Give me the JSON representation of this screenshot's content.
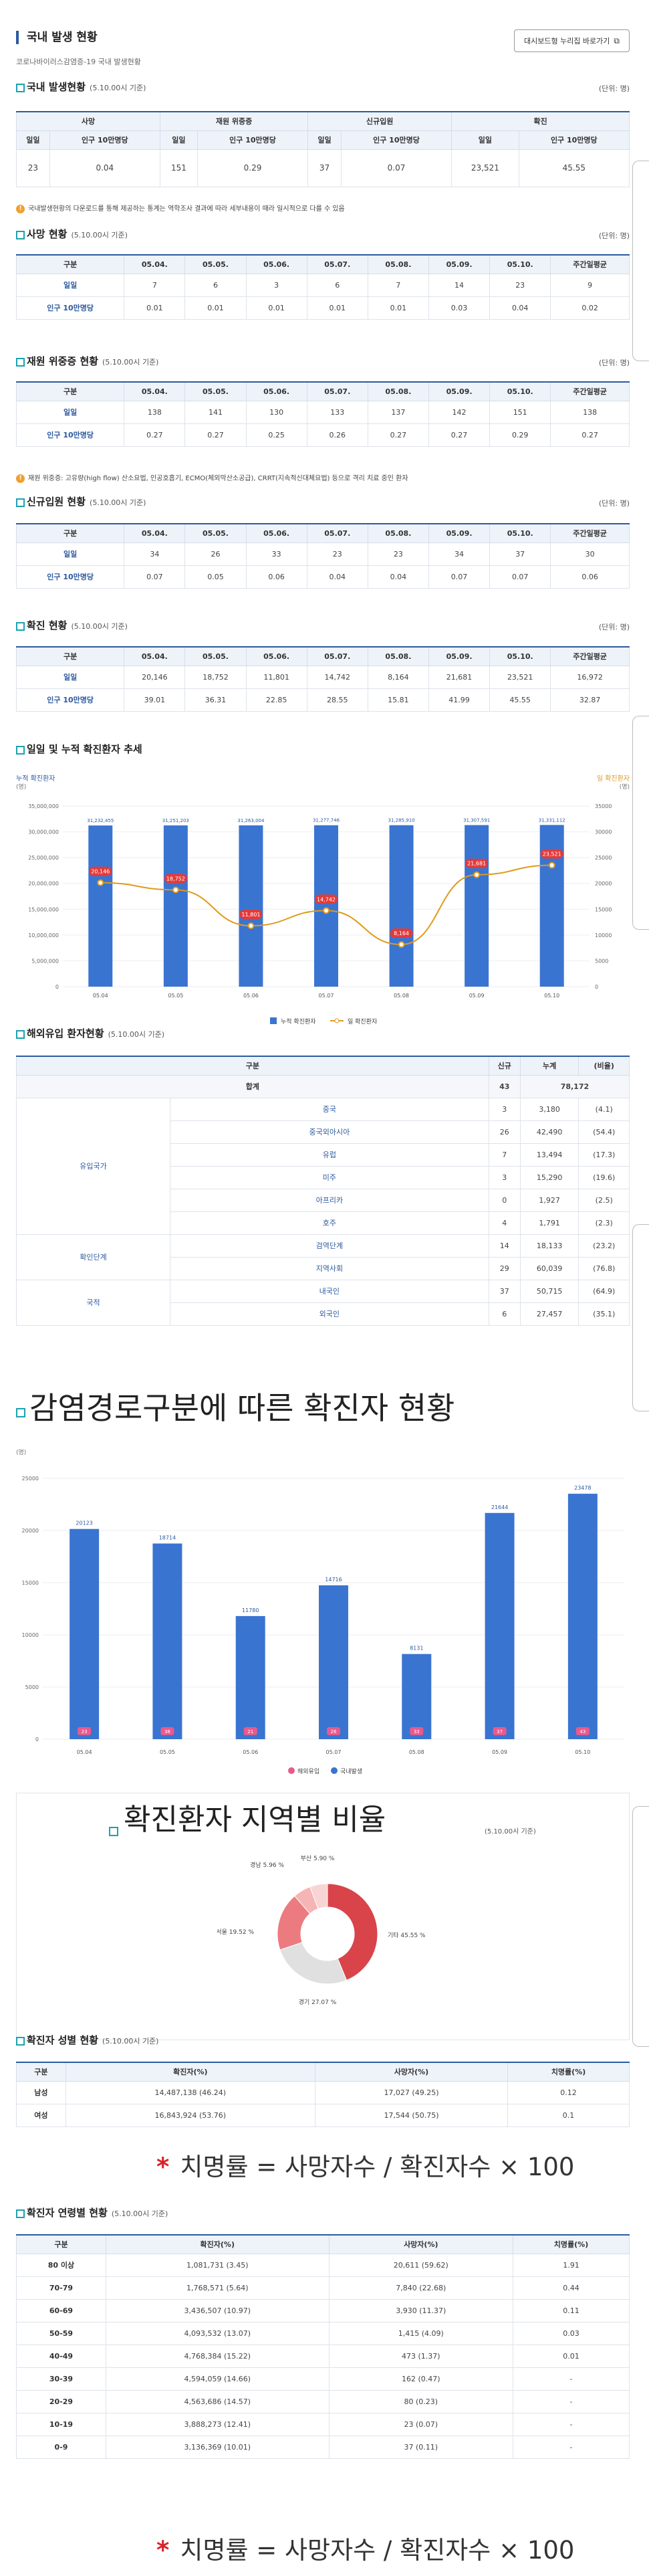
{
  "header": {
    "title": "국내 발생 현황",
    "subtitle": "코로나바이러스감염증-19 국내 발생현황",
    "dashboard_button": "대시보드형 누리집 바로가기"
  },
  "overview": {
    "title": "국내 발생현황",
    "std": "(5.10.00시 기준)",
    "unit": "(단위: 명)",
    "groups": [
      "사망",
      "재원 위중증",
      "신규입원",
      "확진"
    ],
    "sub_headers": [
      "일일",
      "인구 10만명당",
      "일일",
      "인구 10만명당",
      "일일",
      "인구 10만명당",
      "일일",
      "인구 10만명당"
    ],
    "values": [
      "23",
      "0.04",
      "151",
      "0.29",
      "37",
      "0.07",
      "23,521",
      "45.55"
    ],
    "note": "국내발생현황의 다운로드를 통해 제공하는 통계는 역학조사 결과에 따라 세부내용이 때라 일시적으로 다를 수 있음"
  },
  "day_headers": [
    "구분",
    "05.04.",
    "05.05.",
    "05.06.",
    "05.07.",
    "05.08.",
    "05.09.",
    "05.10.",
    "주간일평균"
  ],
  "death": {
    "title": "사망 현황",
    "std": "(5.10.00시 기준)",
    "unit": "(단위: 명)",
    "rows": [
      {
        "label": "일일",
        "values": [
          "7",
          "6",
          "3",
          "6",
          "7",
          "14",
          "23",
          "9"
        ]
      },
      {
        "label": "인구 10만명당",
        "values": [
          "0.01",
          "0.01",
          "0.01",
          "0.01",
          "0.01",
          "0.03",
          "0.04",
          "0.02"
        ]
      }
    ]
  },
  "severe": {
    "title": "재원 위중증 현황",
    "std": "(5.10.00시 기준)",
    "unit": "(단위: 명)",
    "rows": [
      {
        "label": "일일",
        "values": [
          "138",
          "141",
          "130",
          "133",
          "137",
          "142",
          "151",
          "138"
        ]
      },
      {
        "label": "인구 10만명당",
        "values": [
          "0.27",
          "0.27",
          "0.25",
          "0.26",
          "0.27",
          "0.27",
          "0.29",
          "0.27"
        ]
      }
    ],
    "note": "재원 위중증: 고유량(high flow) 산소요법, 인공호흡기, ECMO(체외막산소공급), CRRT(지속적신대체요법) 등으로 격리 치료 중인 환자"
  },
  "admission": {
    "title": "신규입원 현황",
    "std": "(5.10.00시 기준)",
    "unit": "(단위: 명)",
    "rows": [
      {
        "label": "일일",
        "values": [
          "34",
          "26",
          "33",
          "23",
          "23",
          "34",
          "37",
          "30"
        ]
      },
      {
        "label": "인구 10만명당",
        "values": [
          "0.07",
          "0.05",
          "0.06",
          "0.04",
          "0.04",
          "0.07",
          "0.07",
          "0.06"
        ]
      }
    ]
  },
  "confirmed": {
    "title": "확진 현황",
    "std": "(5.10.00시 기준)",
    "unit": "(단위: 명)",
    "rows": [
      {
        "label": "일일",
        "values": [
          "20,146",
          "18,752",
          "11,801",
          "14,742",
          "8,164",
          "21,681",
          "23,521",
          "16,972"
        ]
      },
      {
        "label": "인구 10만명당",
        "values": [
          "39.01",
          "36.31",
          "22.85",
          "28.55",
          "15.81",
          "41.99",
          "45.55",
          "32.87"
        ]
      }
    ]
  },
  "trend": {
    "title": "일일 및 누적 확진환자 추세",
    "left_axis_title": "누적 확진환자",
    "left_axis_unit": "(명)",
    "right_axis_title": "일 확진환자",
    "right_axis_unit": "(명)",
    "legend_cumulative": "누적 확진환자",
    "legend_daily": "일 확진환자"
  },
  "imported": {
    "title": "해외유입 환자현황",
    "std": "(5.10.00시 기준)",
    "headers": [
      "구분",
      "신규",
      "누계",
      "(비율)"
    ],
    "total_label": "합계",
    "total_new": "43",
    "total_cum": "78,172",
    "groups": [
      {
        "label": "유입국가",
        "rows": [
          {
            "name": "중국",
            "new": "3",
            "cum": "3,180",
            "ratio": "(4.1)"
          },
          {
            "name": "중국외아시아",
            "new": "26",
            "cum": "42,490",
            "ratio": "(54.4)"
          },
          {
            "name": "유럽",
            "new": "7",
            "cum": "13,494",
            "ratio": "(17.3)"
          },
          {
            "name": "미주",
            "new": "3",
            "cum": "15,290",
            "ratio": "(19.6)"
          },
          {
            "name": "아프리카",
            "new": "0",
            "cum": "1,927",
            "ratio": "(2.5)"
          },
          {
            "name": "호주",
            "new": "4",
            "cum": "1,791",
            "ratio": "(2.3)"
          }
        ]
      },
      {
        "label": "확인단계",
        "rows": [
          {
            "name": "검역단계",
            "new": "14",
            "cum": "18,133",
            "ratio": "(23.2)"
          },
          {
            "name": "지역사회",
            "new": "29",
            "cum": "60,039",
            "ratio": "(76.8)"
          }
        ]
      },
      {
        "label": "국적",
        "rows": [
          {
            "name": "내국인",
            "new": "37",
            "cum": "50,715",
            "ratio": "(64.9)"
          },
          {
            "name": "외국인",
            "new": "6",
            "cum": "27,457",
            "ratio": "(35.1)"
          }
        ]
      }
    ]
  },
  "route": {
    "title": "감염경로구분에 따른 확진자 현황",
    "unit": "(명)",
    "legend_imported": "해외유입",
    "legend_domestic": "국내발생"
  },
  "region": {
    "title": "확진환자 지역별 비율",
    "std": "(5.10.00시 기준)",
    "slices": [
      "기타 45.55 %",
      "경기 27.07 %",
      "서울 19.52 %",
      "경남 5.96 %",
      "부산 5.90 %"
    ]
  },
  "gender": {
    "title": "확진자 성별 현황",
    "std": "(5.10.00시 기준)",
    "headers": [
      "구분",
      "확진자(%)",
      "사망자(%)",
      "치명률(%)"
    ],
    "rows": [
      {
        "label": "남성",
        "conf": "14,487,138 (46.24)",
        "death": "17,027 (49.25)",
        "rate": "0.12"
      },
      {
        "label": "여성",
        "conf": "16,843,924 (53.76)",
        "death": "17,544 (50.75)",
        "rate": "0.1"
      }
    ]
  },
  "formula_text": "치명률 = 사망자수 / 확진자수 × 100",
  "formula_star": "*",
  "age": {
    "title": "확진자 연령별 현황",
    "std": "(5.10.00시 기준)",
    "headers": [
      "구분",
      "확진자(%)",
      "사망자(%)",
      "치명률(%)"
    ],
    "rows": [
      {
        "label": "80 이상",
        "conf": "1,081,731 (3.45)",
        "death": "20,611 (59.62)",
        "rate": "1.91"
      },
      {
        "label": "70-79",
        "conf": "1,768,571 (5.64)",
        "death": "7,840 (22.68)",
        "rate": "0.44"
      },
      {
        "label": "60-69",
        "conf": "3,436,507 (10.97)",
        "death": "3,930 (11.37)",
        "rate": "0.11"
      },
      {
        "label": "50-59",
        "conf": "4,093,532 (13.07)",
        "death": "1,415 (4.09)",
        "rate": "0.03"
      },
      {
        "label": "40-49",
        "conf": "4,768,384 (15.22)",
        "death": "473 (1.37)",
        "rate": "0.01"
      },
      {
        "label": "30-39",
        "conf": "4,594,059 (14.66)",
        "death": "162 (0.47)",
        "rate": "-"
      },
      {
        "label": "20-29",
        "conf": "4,563,686 (14.57)",
        "death": "80 (0.23)",
        "rate": "-"
      },
      {
        "label": "10-19",
        "conf": "3,888,273 (12.41)",
        "death": "23 (0.07)",
        "rate": "-"
      },
      {
        "label": "0-9",
        "conf": "3,136,369 (10.01)",
        "death": "37 (0.11)",
        "rate": "-"
      }
    ]
  },
  "chart_data": [
    {
      "type": "bar",
      "title": "일일 및 누적 확진환자 추세",
      "categories": [
        "05.04",
        "05.05",
        "05.06",
        "05.07",
        "05.08",
        "05.09",
        "05.10"
      ],
      "series": [
        {
          "name": "누적 확진환자",
          "type": "bar",
          "axis": "left",
          "values": [
            31232455,
            31251203,
            31263004,
            31277746,
            31285910,
            31307591,
            31331112
          ],
          "labels": [
            "31,232,455",
            "31,251,203",
            "31,263,004",
            "31,277,746",
            "31,285,910",
            "31,307,591",
            "31,331,112"
          ]
        },
        {
          "name": "일 확진환자",
          "type": "line",
          "axis": "right",
          "values": [
            20146,
            18752,
            11801,
            14742,
            8164,
            21681,
            23521
          ],
          "labels": [
            "20,146",
            "18,752",
            "11,801",
            "14,742",
            "8,164",
            "21,681",
            "23,521"
          ]
        }
      ],
      "left_ylim": [
        0,
        35000000
      ],
      "left_ticks": [
        "0",
        "5,000,000",
        "10,000,000",
        "15,000,000",
        "20,000,000",
        "25,000,000",
        "30,000,000",
        "35,000,000"
      ],
      "right_ylim": [
        0,
        35000
      ],
      "right_ticks": [
        "0",
        "5000",
        "10000",
        "15000",
        "20000",
        "25000",
        "30000",
        "35000"
      ],
      "legend": "bottom"
    },
    {
      "type": "bar",
      "title": "감염경로구분에 따른 확진자 현황",
      "categories": [
        "05.04",
        "05.05",
        "05.06",
        "05.07",
        "05.08",
        "05.09",
        "05.10"
      ],
      "series": [
        {
          "name": "국내발생",
          "values": [
            20123,
            18714,
            11780,
            14716,
            8131,
            21644,
            23478
          ]
        },
        {
          "name": "해외유입",
          "values": [
            23,
            38,
            21,
            26,
            33,
            37,
            43
          ]
        }
      ],
      "ylim": [
        0,
        25000
      ],
      "ticks": [
        "0",
        "5000",
        "10000",
        "15000",
        "20000",
        "25000"
      ],
      "legend": "bottom"
    },
    {
      "type": "pie",
      "title": "확진환자 지역별 비율",
      "labels": [
        "기타",
        "경기",
        "서울",
        "경남",
        "부산"
      ],
      "values": [
        45.55,
        27.07,
        19.52,
        5.96,
        5.9
      ],
      "colors": [
        "#d9434a",
        "#e0e0e0",
        "#ec7b80",
        "#f5b5b5",
        "#f8d4d4"
      ]
    }
  ],
  "colors": {
    "accent": "#2c5aa0",
    "bar": "#3a74d1",
    "line": "#e09a1a",
    "teal": "#1aa3b0",
    "red": "#d8232a"
  }
}
